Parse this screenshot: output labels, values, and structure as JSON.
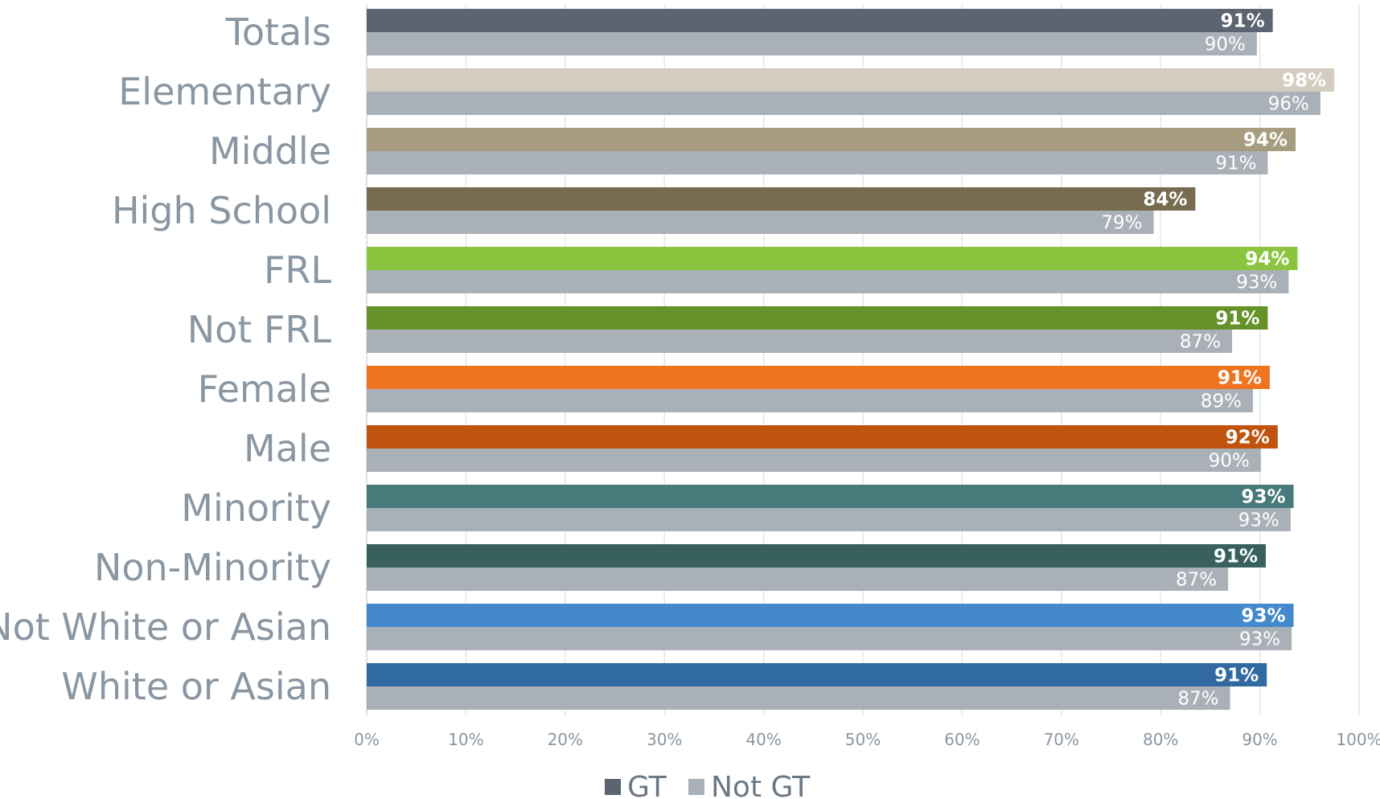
{
  "chart_data": {
    "type": "bar",
    "orientation": "horizontal",
    "title": "",
    "xlabel": "",
    "ylabel": "",
    "xlim": [
      0,
      100
    ],
    "x_ticks": [
      "0%",
      "10%",
      "20%",
      "30%",
      "40%",
      "50%",
      "60%",
      "70%",
      "80%",
      "90%",
      "100%"
    ],
    "grid": "vertical",
    "legend_position": "bottom",
    "categories": [
      "Totals",
      "Elementary",
      "Middle",
      "High School",
      "FRL",
      "Not FRL",
      "Female",
      "Male",
      "Minority",
      "Non-Minority",
      "Not White or Asian",
      "White or Asian"
    ],
    "category_colors": [
      "#5b6470",
      "#d3cdbf",
      "#a89c80",
      "#776b50",
      "#8bc53f",
      "#65932a",
      "#ee7422",
      "#c0530e",
      "#477a7a",
      "#38605f",
      "#4389cc",
      "#316aa0"
    ],
    "series": [
      {
        "name": "GT",
        "color": "#5b6470",
        "values": [
          91.3,
          97.5,
          93.6,
          83.5,
          93.8,
          90.8,
          91.0,
          91.8,
          93.4,
          90.6,
          93.4,
          90.7
        ],
        "labels": [
          "91%",
          "98%",
          "94%",
          "84%",
          "94%",
          "91%",
          "91%",
          "92%",
          "93%",
          "91%",
          "93%",
          "91%"
        ]
      },
      {
        "name": "Not GT",
        "color": "#a9b0b7",
        "values": [
          89.7,
          96.1,
          90.8,
          79.3,
          92.9,
          87.2,
          89.3,
          90.1,
          93.1,
          86.8,
          93.2,
          87.0
        ],
        "labels": [
          "90%",
          "96%",
          "91%",
          "79%",
          "93%",
          "87%",
          "89%",
          "90%",
          "93%",
          "87%",
          "93%",
          "87%"
        ]
      }
    ]
  }
}
